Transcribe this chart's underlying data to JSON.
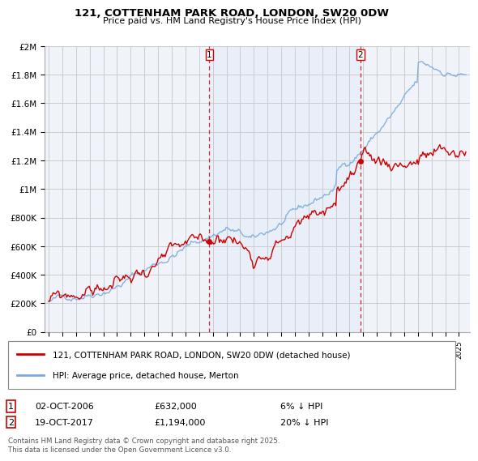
{
  "title": "121, COTTENHAM PARK ROAD, LONDON, SW20 0DW",
  "subtitle": "Price paid vs. HM Land Registry's House Price Index (HPI)",
  "ylabel_ticks": [
    "£0",
    "£200K",
    "£400K",
    "£600K",
    "£800K",
    "£1M",
    "£1.2M",
    "£1.4M",
    "£1.6M",
    "£1.8M",
    "£2M"
  ],
  "ytick_values": [
    0,
    200000,
    400000,
    600000,
    800000,
    1000000,
    1200000,
    1400000,
    1600000,
    1800000,
    2000000
  ],
  "ylim": [
    0,
    2000000
  ],
  "xlim_start": 1994.7,
  "xlim_end": 2025.8,
  "sale1_x": 2006.75,
  "sale1_y": 632000,
  "sale2_x": 2017.8,
  "sale2_y": 1194000,
  "vline1_x": 2006.75,
  "vline2_x": 2017.8,
  "legend_line1": "121, COTTENHAM PARK ROAD, LONDON, SW20 0DW (detached house)",
  "legend_line2": "HPI: Average price, detached house, Merton",
  "ann1_num": "1",
  "ann1_date": "02-OCT-2006",
  "ann1_price": "£632,000",
  "ann1_hpi": "6% ↓ HPI",
  "ann2_num": "2",
  "ann2_date": "19-OCT-2017",
  "ann2_price": "£1,194,000",
  "ann2_hpi": "20% ↓ HPI",
  "footer": "Contains HM Land Registry data © Crown copyright and database right 2025.\nThis data is licensed under the Open Government Licence v3.0.",
  "line_color_red": "#cc0000",
  "line_color_blue": "#7aaadd",
  "shade_color": "#dde8f5",
  "vline_color": "#cc0000",
  "background_color": "#ffffff",
  "plot_bg_color": "#f0f4fa",
  "grid_color": "#cccccc"
}
